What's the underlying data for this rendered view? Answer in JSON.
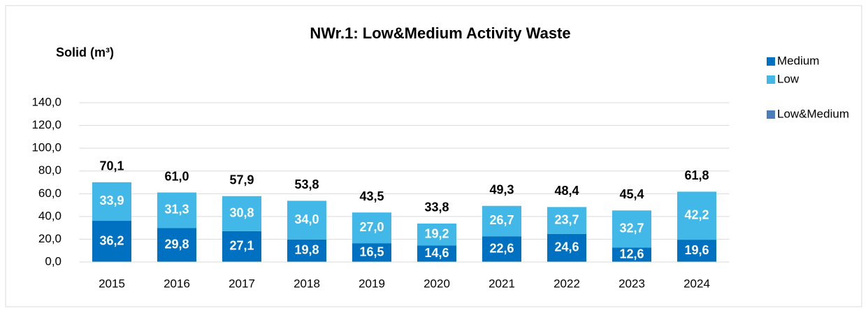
{
  "chart_data": {
    "type": "stacked_bar",
    "title": "NWr.1: Low&Medium Activity Waste",
    "y_label": "Solid (m³)",
    "categories": [
      "2015",
      "2016",
      "2017",
      "2018",
      "2019",
      "2020",
      "2021",
      "2022",
      "2023",
      "2024"
    ],
    "series": [
      {
        "name": "Medium",
        "color": "#0070c0",
        "values": [
          36.2,
          29.8,
          27.1,
          19.8,
          16.5,
          14.6,
          22.6,
          24.6,
          12.6,
          19.6
        ],
        "value_labels": [
          "36,2",
          "29,8",
          "27,1",
          "19,8",
          "16,5",
          "14,6",
          "22,6",
          "24,6",
          "12,6",
          "19,6"
        ]
      },
      {
        "name": "Low",
        "color": "#41b8e8",
        "values": [
          33.9,
          31.3,
          30.8,
          34.0,
          27.0,
          19.2,
          26.7,
          23.7,
          32.7,
          42.2
        ],
        "value_labels": [
          "33,9",
          "31,3",
          "30,8",
          "34,0",
          "27,0",
          "19,2",
          "26,7",
          "23,7",
          "32,7",
          "42,2"
        ]
      },
      {
        "name": "Low&Medium",
        "color": "#4a7ebb",
        "values": [
          70.1,
          61.0,
          57.9,
          53.8,
          43.5,
          33.8,
          49.3,
          48.4,
          45.4,
          61.8
        ],
        "value_labels": [
          "70,1",
          "61,0",
          "57,9",
          "53,8",
          "43,5",
          "33,8",
          "49,3",
          "48,4",
          "45,4",
          "61,8"
        ]
      }
    ],
    "ylim": [
      0,
      140
    ],
    "yticks": [
      {
        "value": 0,
        "label": "0,0"
      },
      {
        "value": 20,
        "label": "20,0"
      },
      {
        "value": 40,
        "label": "40,0"
      },
      {
        "value": 60,
        "label": "60,0"
      },
      {
        "value": 80,
        "label": "80,0"
      },
      {
        "value": 100,
        "label": "100,0"
      },
      {
        "value": 120,
        "label": "120,0"
      },
      {
        "value": 140,
        "label": "140,0"
      }
    ],
    "grid": true,
    "legend": "right"
  }
}
